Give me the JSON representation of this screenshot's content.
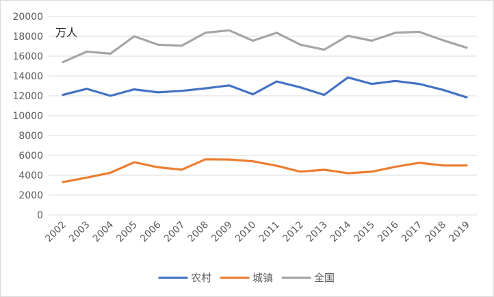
{
  "chart_data": {
    "type": "line",
    "unit_label": "万人",
    "x": [
      "2002",
      "2003",
      "2004",
      "2005",
      "2006",
      "2007",
      "2008",
      "2009",
      "2010",
      "2011",
      "2012",
      "2013",
      "2014",
      "2015",
      "2016",
      "2017",
      "2018",
      "2019"
    ],
    "ylim": [
      0,
      20000
    ],
    "yticks": [
      0,
      2000,
      4000,
      6000,
      8000,
      10000,
      12000,
      14000,
      16000,
      18000,
      20000
    ],
    "grid": true,
    "legend_position": "bottom",
    "series": [
      {
        "name": "农村",
        "color": "#4472c4",
        "values": [
          12100,
          12700,
          12000,
          12650,
          12350,
          12500,
          12750,
          13050,
          12150,
          13450,
          12850,
          12100,
          13850,
          13200,
          13500,
          13200,
          12600,
          11850
        ]
      },
      {
        "name": "城镇",
        "color": "#ed7d31",
        "values": [
          3300,
          3750,
          4250,
          5300,
          4800,
          4550,
          5600,
          5580,
          5400,
          4950,
          4350,
          4550,
          4200,
          4350,
          4850,
          5250,
          4980,
          4980
        ]
      },
      {
        "name": "全国",
        "color": "#a5a5a5",
        "values": [
          15400,
          16450,
          16250,
          18000,
          17150,
          17050,
          18350,
          18600,
          17550,
          18350,
          17150,
          16650,
          18050,
          17550,
          18350,
          18450,
          17600,
          16850
        ]
      }
    ]
  }
}
